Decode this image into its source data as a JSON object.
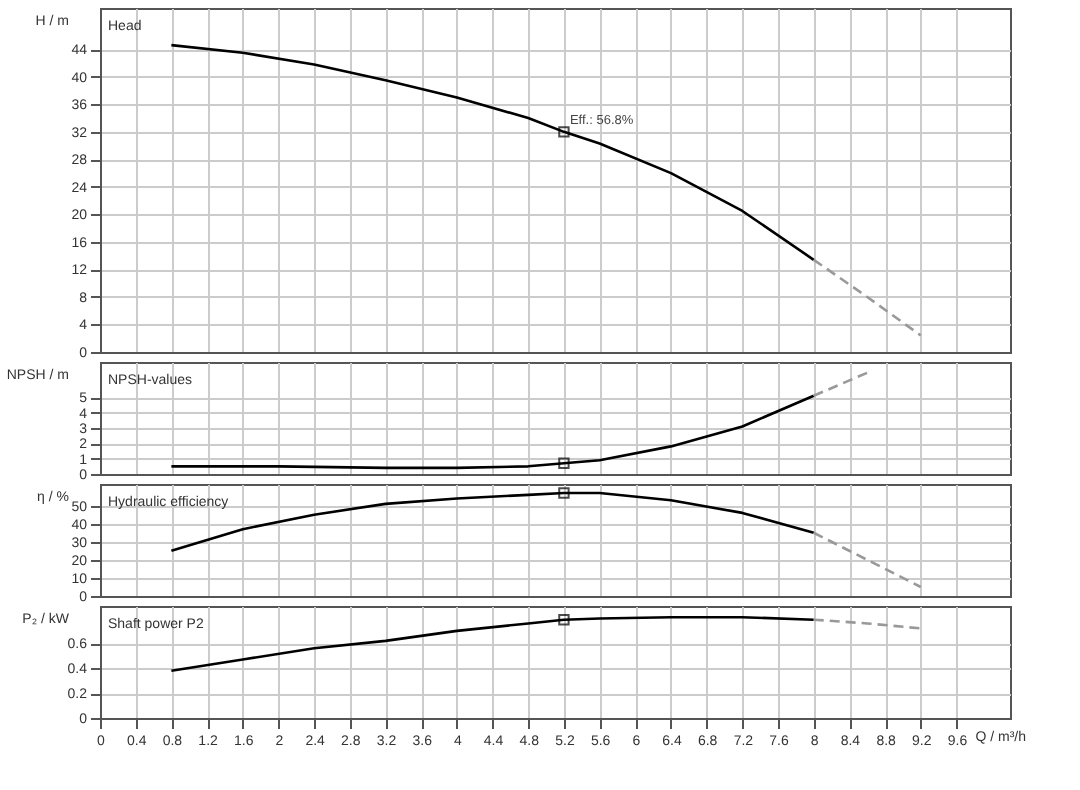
{
  "chart_data": [
    {
      "type": "line",
      "title": "Head",
      "ylabel": "H / m",
      "xlim": [
        0,
        10.2
      ],
      "xticks": [
        0,
        0.4,
        0.8,
        1.2,
        1.6,
        2,
        2.4,
        2.8,
        3.2,
        3.6,
        4,
        4.4,
        4.8,
        5.2,
        5.6,
        6,
        6.4,
        6.8,
        7.2,
        7.6,
        8,
        8.4,
        8.8,
        9.2,
        9.6
      ],
      "ylim": [
        0,
        50
      ],
      "yticks": [
        0,
        4,
        8,
        12,
        16,
        20,
        24,
        28,
        32,
        36,
        40,
        44
      ],
      "grid": true,
      "tick_labels": "y",
      "annotations": [
        {
          "text": "Eff.: 56.8%",
          "x": 5.2,
          "y": 32
        }
      ],
      "series": [
        {
          "type": "line",
          "color": "#000000",
          "line_style": "solid",
          "x": [
            0.8,
            1.6,
            2.4,
            3.2,
            4,
            4.8,
            5.2,
            5.6,
            6.4,
            7.2,
            8
          ],
          "values": [
            44.6,
            43.5,
            41.8,
            39.5,
            37,
            34,
            32,
            30.3,
            26,
            20.5,
            13.4
          ]
        },
        {
          "type": "line",
          "color": "#999999",
          "line_style": "dashed",
          "x": [
            8,
            8.6,
            9.2
          ],
          "values": [
            13.4,
            8,
            2.4
          ]
        },
        {
          "type": "scatter",
          "color": "#000000",
          "marker": "square",
          "x": [
            5.2
          ],
          "values": [
            32
          ]
        }
      ]
    },
    {
      "type": "line",
      "title": "NPSH-values",
      "ylabel": "NPSH / m",
      "xlim": [
        0,
        10.2
      ],
      "xticks": [
        0,
        0.4,
        0.8,
        1.2,
        1.6,
        2,
        2.4,
        2.8,
        3.2,
        3.6,
        4,
        4.4,
        4.8,
        5.2,
        5.6,
        6,
        6.4,
        6.8,
        7.2,
        7.6,
        8,
        8.4,
        8.8,
        9.2,
        9.6
      ],
      "ylim": [
        0,
        7.3
      ],
      "yticks": [
        0,
        1,
        2,
        3,
        4,
        5
      ],
      "grid": true,
      "tick_labels": "y",
      "series": [
        {
          "type": "line",
          "color": "#000000",
          "line_style": "solid",
          "x": [
            0.8,
            2,
            3.2,
            4,
            4.8,
            5.2,
            5.6,
            6.4,
            7.2,
            8
          ],
          "values": [
            0.5,
            0.5,
            0.4,
            0.4,
            0.5,
            0.7,
            0.9,
            1.8,
            3.1,
            5.1
          ]
        },
        {
          "type": "line",
          "color": "#999999",
          "line_style": "dashed",
          "x": [
            8,
            8.6
          ],
          "values": [
            5.1,
            6.6
          ]
        },
        {
          "type": "scatter",
          "color": "#000000",
          "marker": "square",
          "x": [
            5.2
          ],
          "values": [
            0.7
          ]
        }
      ]
    },
    {
      "type": "line",
      "title": "Hydraulic efficiency",
      "ylabel": "η / %",
      "xlim": [
        0,
        10.2
      ],
      "xticks": [
        0,
        0.4,
        0.8,
        1.2,
        1.6,
        2,
        2.4,
        2.8,
        3.2,
        3.6,
        4,
        4.4,
        4.8,
        5.2,
        5.6,
        6,
        6.4,
        6.8,
        7.2,
        7.6,
        8,
        8.4,
        8.8,
        9.2,
        9.6
      ],
      "ylim": [
        0,
        62
      ],
      "yticks": [
        0,
        10,
        20,
        30,
        40,
        50
      ],
      "grid": true,
      "tick_labels": "y",
      "series": [
        {
          "type": "line",
          "color": "#000000",
          "line_style": "solid",
          "x": [
            0.8,
            1.6,
            2.4,
            3.2,
            4,
            4.8,
            5.2,
            5.6,
            6.4,
            7.2,
            8
          ],
          "values": [
            25,
            37,
            45,
            51,
            54,
            56,
            57,
            57,
            53,
            46,
            35
          ]
        },
        {
          "type": "line",
          "color": "#999999",
          "line_style": "dashed",
          "x": [
            8,
            8.6,
            9.2
          ],
          "values": [
            35,
            20,
            5
          ]
        },
        {
          "type": "scatter",
          "color": "#000000",
          "marker": "square",
          "x": [
            5.2
          ],
          "values": [
            57
          ]
        }
      ]
    },
    {
      "type": "line",
      "title": "Shaft power P2",
      "ylabel": "P₂ / kW",
      "xlabel": "Q / m³/h",
      "xlim": [
        0,
        10.2
      ],
      "xticks": [
        0,
        0.4,
        0.8,
        1.2,
        1.6,
        2,
        2.4,
        2.8,
        3.2,
        3.6,
        4,
        4.4,
        4.8,
        5.2,
        5.6,
        6,
        6.4,
        6.8,
        7.2,
        7.6,
        8,
        8.4,
        8.8,
        9.2,
        9.6
      ],
      "ylim": [
        0,
        0.9
      ],
      "yticks": [
        0,
        0.2,
        0.4,
        0.6
      ],
      "grid": true,
      "series": [
        {
          "type": "line",
          "color": "#000000",
          "line_style": "solid",
          "x": [
            0.8,
            1.6,
            2.4,
            3.2,
            4,
            4.8,
            5.2,
            5.6,
            6.4,
            7.2,
            8
          ],
          "values": [
            0.38,
            0.47,
            0.56,
            0.62,
            0.7,
            0.76,
            0.79,
            0.8,
            0.81,
            0.81,
            0.79
          ]
        },
        {
          "type": "line",
          "color": "#999999",
          "line_style": "dashed",
          "x": [
            8,
            8.6,
            9.2
          ],
          "values": [
            0.79,
            0.76,
            0.72
          ]
        },
        {
          "type": "scatter",
          "color": "#000000",
          "marker": "square",
          "x": [
            5.2
          ],
          "values": [
            0.79
          ]
        }
      ]
    }
  ]
}
